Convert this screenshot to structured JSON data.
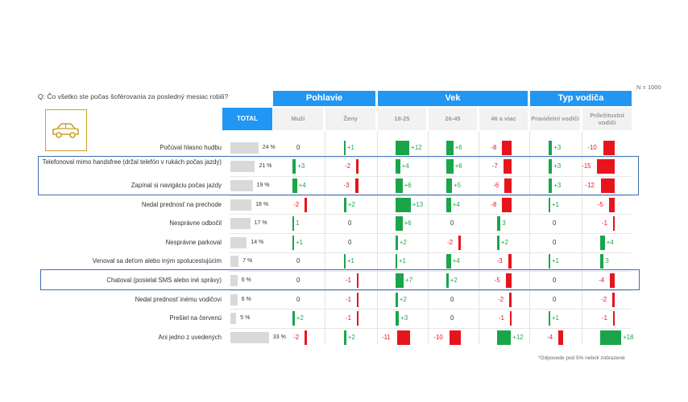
{
  "question": "Q: Čo všetko ste počas šoférovania za posledný mesiac robili?",
  "n_label": "N = 1000",
  "footnote": "*Odpovede pod 5% neboli zobrazené",
  "colors": {
    "header": "#2196f3",
    "positive": "#1aa54a",
    "negative": "#e8141c",
    "total_bar": "#d9d9d9",
    "highlight_box": "#3b6fb0",
    "logo": "#c9a227"
  },
  "logo_icon": "car-icon",
  "header": {
    "total": "TOTAL",
    "groups": [
      {
        "label": "Pohlavie",
        "columns": [
          "Muži",
          "Ženy"
        ]
      },
      {
        "label": "Vek",
        "columns": [
          "18-25",
          "26-45",
          "46 a viac"
        ]
      },
      {
        "label": "Typ vodiča",
        "columns": [
          "Pravidelní vodiči",
          "Príležitostní vodiči"
        ]
      }
    ]
  },
  "chart_data": {
    "type": "table",
    "columns": [
      "Muži",
      "Ženy",
      "18-25",
      "26-45",
      "46 a viac",
      "Pravidelní vodiči",
      "Príležitostní vodiči"
    ],
    "rows": [
      {
        "label": "Počúval hlasno hudbu",
        "total": 24,
        "total_label": "24 %",
        "diffs": [
          0,
          1,
          12,
          6,
          -8,
          3,
          -10
        ],
        "diff_labels": [
          "0",
          "+1",
          "+12",
          "+6",
          "-8",
          "+3",
          "-10"
        ]
      },
      {
        "label": "Telefonoval mimo handsfree (držal telefón v rukách počas jazdy)",
        "total": 21,
        "total_label": "21 %",
        "diffs": [
          3,
          -2,
          4,
          6,
          -7,
          3,
          -15
        ],
        "diff_labels": [
          "+3",
          "-2",
          "+4",
          "+6",
          "-7",
          "+3",
          "-15"
        ]
      },
      {
        "label": "Zapínal si navigáciu počas jazdy",
        "total": 19,
        "total_label": "19 %",
        "diffs": [
          4,
          -3,
          6,
          5,
          -6,
          3,
          -12
        ],
        "diff_labels": [
          "+4",
          "-3",
          "+6",
          "+5",
          "-6",
          "+3",
          "-12"
        ]
      },
      {
        "label": "Nedal prednosť na prechode",
        "total": 18,
        "total_label": "18 %",
        "diffs": [
          -2,
          2,
          13,
          4,
          -8,
          1,
          -5
        ],
        "diff_labels": [
          "-2",
          "+2",
          "+13",
          "+4",
          "-8",
          "+1",
          "-5"
        ]
      },
      {
        "label": "Nesprávne odbočil",
        "total": 17,
        "total_label": "17 %",
        "diffs": [
          1,
          0,
          6,
          0,
          3,
          0,
          -1
        ],
        "diff_labels": [
          "1",
          "0",
          "+6",
          "0",
          "3",
          "0",
          "-1"
        ]
      },
      {
        "label": "Nesprávne parkoval",
        "total": 14,
        "total_label": "14 %",
        "diffs": [
          1,
          0,
          2,
          -2,
          2,
          0,
          4
        ],
        "diff_labels": [
          "+1",
          "0",
          "+2",
          "-2",
          "+2",
          "0",
          "+4"
        ]
      },
      {
        "label": "Venoval sa deťom alebo iným spolucestujúcim",
        "total": 7,
        "total_label": "7 %",
        "diffs": [
          0,
          1,
          1,
          4,
          -3,
          1,
          3
        ],
        "diff_labels": [
          "0",
          "+1",
          "+1",
          "+4",
          "-3",
          "+1",
          "3"
        ]
      },
      {
        "label": "Chatoval (posielal SMS alebo iné správy)",
        "total": 6,
        "total_label": "6 %",
        "diffs": [
          0,
          -1,
          7,
          2,
          -5,
          0,
          -4
        ],
        "diff_labels": [
          "0",
          "-1",
          "+7",
          "+2",
          "-5",
          "0",
          "-4"
        ]
      },
      {
        "label": "Nedal prednosť inému vodičovi",
        "total": 6,
        "total_label": "6 %",
        "diffs": [
          0,
          -1,
          2,
          0,
          -2,
          0,
          -2
        ],
        "diff_labels": [
          "0",
          "-1",
          "+2",
          "0",
          "-2",
          "0",
          "-2"
        ]
      },
      {
        "label": "Prešiel na červenú",
        "total": 5,
        "total_label": "5 %",
        "diffs": [
          2,
          -1,
          3,
          0,
          -1,
          1,
          -1
        ],
        "diff_labels": [
          "+2",
          "-1",
          "+3",
          "0",
          "-1",
          "+1",
          "-1"
        ]
      },
      {
        "label": "Ani jedno z uvedených",
        "total": 33,
        "total_label": "33 %",
        "diffs": [
          -2,
          2,
          -11,
          -10,
          12,
          -4,
          18
        ],
        "diff_labels": [
          "-2",
          "+2",
          "-11",
          "-10",
          "+12",
          "-4",
          "+18"
        ]
      }
    ],
    "highlighted_rows": [
      "Telefonoval mimo handsfree (držal telefón v rukách počas jazdy)",
      "Zapínal si navigáciu počas jazdy",
      "Chatoval (posielal SMS alebo iné správy)"
    ]
  }
}
